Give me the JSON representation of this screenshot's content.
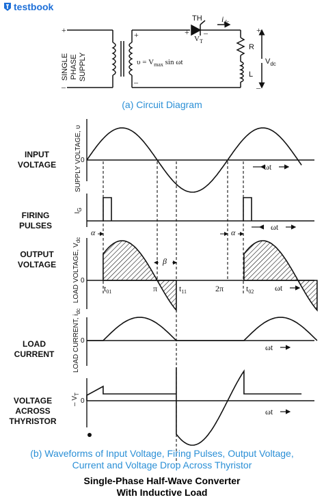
{
  "brand": {
    "name": "testbook"
  },
  "circuit": {
    "supply_lines": [
      "SINGLE",
      "PHASE",
      "SUPPLY"
    ],
    "equation_prefix": "υ = V",
    "equation_sub": "max",
    "equation_suffix": " sin ωt",
    "thyristor": "TH",
    "vt": "V",
    "vt_sub": "T",
    "idc": "i",
    "idc_sub": "dc",
    "r": "R",
    "l": "L",
    "vdc": "V",
    "vdc_sub": "dc",
    "plus": "+",
    "minus": "–"
  },
  "caption_a": "(a) Circuit Diagram",
  "panels": {
    "input": {
      "label_lines": [
        "INPUT",
        "VOLTAGE"
      ],
      "ylabel": "SUPPLY VOLTAGE, υ",
      "axis": "ωt"
    },
    "firing": {
      "label_lines": [
        "FIRING",
        "PULSES"
      ],
      "ylabel": "I",
      "ylabel_sub": "G",
      "axis": "ωt"
    },
    "output": {
      "label_lines": [
        "OUTPUT",
        "VOLTAGE"
      ],
      "ylabel": "LOAD VOLTAGE, V",
      "ylabel_sub": "dc",
      "axis": "ωt",
      "marks": {
        "alpha": "α",
        "beta": "β",
        "t01": "t",
        "t01_sub": "01",
        "pi": "π",
        "t11": "t",
        "t11_sub": "11",
        "twopi": "2π",
        "t02": "t",
        "t02_sub": "02"
      }
    },
    "current": {
      "label_lines": [
        "LOAD",
        "CURRENT"
      ],
      "ylabel": "LOAD CURRENT, i",
      "ylabel_sub": "dc",
      "axis": "ωt"
    },
    "thyristor": {
      "label_lines": [
        "VOLTAGE",
        "ACROSS",
        "THYRISTOR"
      ],
      "ylabel": "– V",
      "ylabel_sub": "T",
      "axis": "ωt"
    }
  },
  "zero": "0",
  "caption_b": [
    "(b) Waveforms of Input Voltage, Firing Pulses, Output Voltage,",
    "Current and Voltage Drop Across Thyristor"
  ],
  "footer": [
    "Single-Phase Half-Wave Converter",
    "With Inductive Load"
  ]
}
